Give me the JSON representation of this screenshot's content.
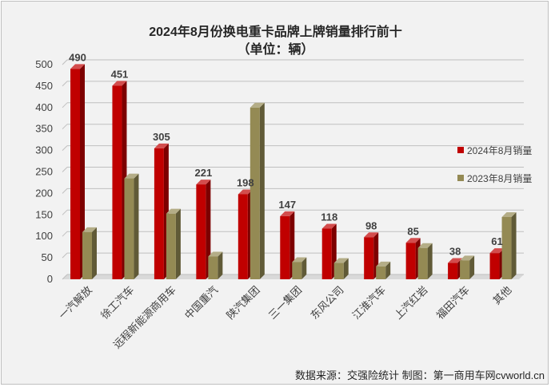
{
  "title_line1": "2024年8月份换电重卡品牌上牌销量排行前十",
  "title_line2": "（单位：辆）",
  "source": "数据来源：交强险统计 制图：第一商用车网cvworld.cn",
  "colors": {
    "series_2024": "#c00000",
    "series_2023": "#948a54"
  },
  "chart_data": {
    "type": "bar",
    "title": "2024年8月份换电重卡品牌上牌销量排行前十（单位：辆）",
    "categories": [
      "一汽解放",
      "徐工汽车",
      "远程新能源商用车",
      "中国重汽",
      "陕汽集团",
      "三一集团",
      "东风公司",
      "江淮汽车",
      "上汽红岩",
      "福田汽车",
      "其他"
    ],
    "series": [
      {
        "name": "2024年8月销量",
        "values": [
          490,
          451,
          305,
          221,
          198,
          147,
          118,
          98,
          85,
          38,
          61
        ],
        "labeled": true
      },
      {
        "name": "2023年8月销量",
        "values": [
          110,
          235,
          153,
          53,
          400,
          40,
          38,
          30,
          73,
          44,
          145
        ],
        "labeled": false
      }
    ],
    "ylim": [
      0,
      500
    ],
    "yticks": [
      0,
      50,
      100,
      150,
      200,
      250,
      300,
      350,
      400,
      450,
      500
    ],
    "grid": true,
    "legend_position": "right"
  }
}
